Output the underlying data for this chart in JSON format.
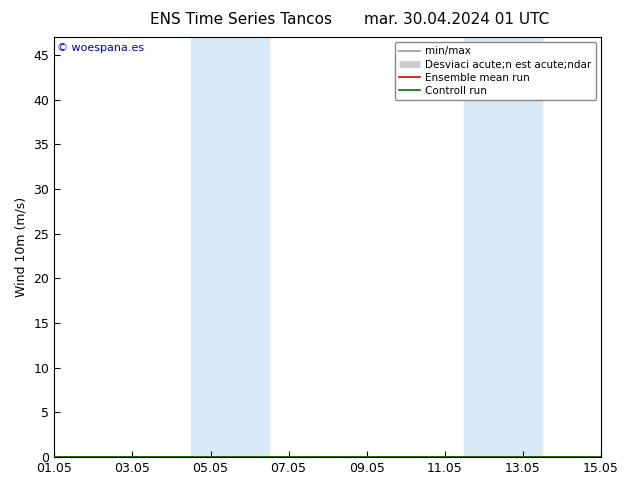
{
  "title_left": "ENS Time Series Tancos",
  "title_right": "mar. 30.04.2024 01 UTC",
  "ylabel": "Wind 10m (m/s)",
  "ylim": [
    0,
    47
  ],
  "yticks": [
    0,
    5,
    10,
    15,
    20,
    25,
    30,
    35,
    40,
    45
  ],
  "xlim": [
    0,
    14
  ],
  "xtick_positions": [
    0,
    2,
    4,
    6,
    8,
    10,
    12,
    14
  ],
  "xtick_labels": [
    "01.05",
    "03.05",
    "05.05",
    "07.05",
    "09.05",
    "11.05",
    "13.05",
    "15.05"
  ],
  "shaded_bands": [
    {
      "start": 3.5,
      "end": 5.5
    },
    {
      "start": 10.5,
      "end": 12.5
    }
  ],
  "shade_color": "#d8eaf8",
  "legend_entries": [
    {
      "label": "min/max",
      "color": "#999999",
      "lw": 1.2
    },
    {
      "label": "Desviaci acute;n est acute;ndar",
      "color": "#cccccc",
      "lw": 5
    },
    {
      "label": "Ensemble mean run",
      "color": "#dd0000",
      "lw": 1.2
    },
    {
      "label": "Controll run",
      "color": "#007700",
      "lw": 1.2
    }
  ],
  "watermark": "© woespana.es",
  "watermark_color": "#0000cc",
  "bg_color": "#ffffff",
  "spine_color": "#000000",
  "tick_color": "#000000",
  "tick_label_fontsize": 9,
  "axis_label_fontsize": 9,
  "title_fontsize": 11,
  "legend_fontsize": 7.5
}
